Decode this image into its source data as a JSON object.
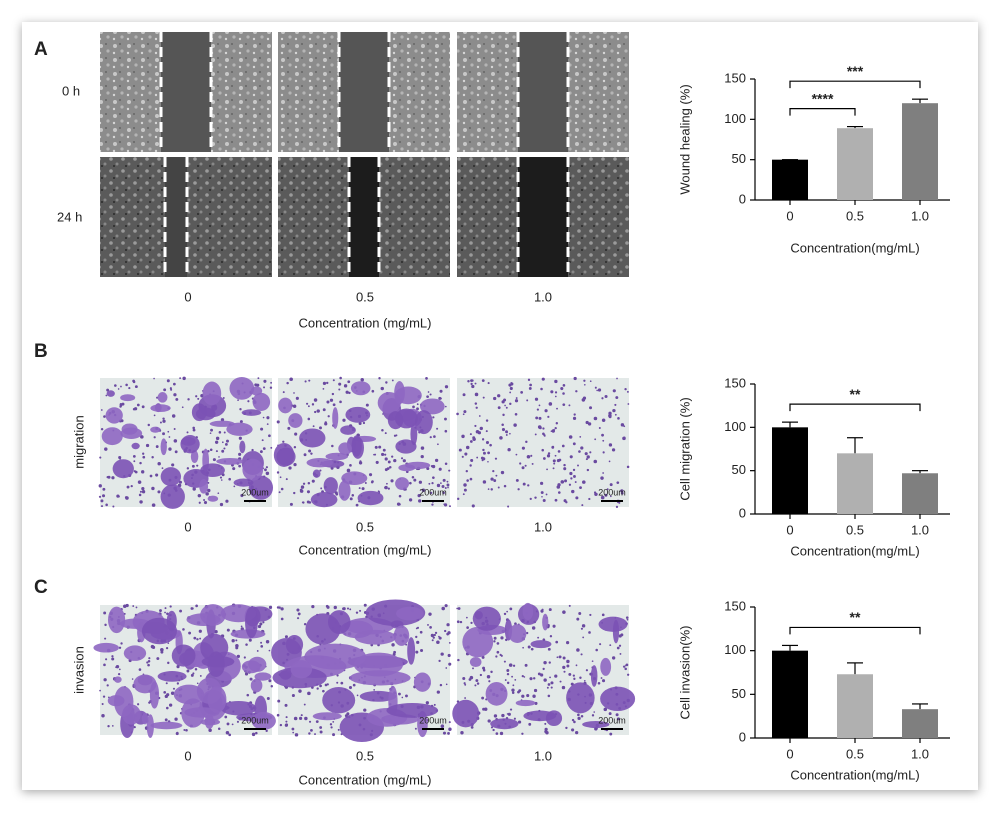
{
  "figure": {
    "panel_a": {
      "label": "A",
      "rows": [
        "0 h",
        "24 h"
      ],
      "columns": [
        "0",
        "0.5",
        "1.0"
      ],
      "xlabel": "Concentration (mg/mL)"
    },
    "panel_b": {
      "label": "B",
      "row": "migration",
      "columns": [
        "0",
        "0.5",
        "1.0"
      ],
      "xlabel": "Concentration (mg/mL)",
      "scale_bar": "200um"
    },
    "panel_c": {
      "label": "C",
      "row": "invasion",
      "columns": [
        "0",
        "0.5",
        "1.0"
      ],
      "xlabel": "Concentration (mg/mL)",
      "scale_bar": "200um"
    }
  },
  "chart_data": [
    {
      "type": "bar",
      "ylabel": "Wound healing (%)",
      "xlabel": "Concentration(mg/mL)",
      "categories": [
        "0",
        "0.5",
        "1.0"
      ],
      "values": [
        50,
        89,
        120
      ],
      "errors": [
        0,
        2,
        5
      ],
      "colors": [
        "#000000",
        "#b0b0b0",
        "#7f7f7f"
      ],
      "ylim": [
        0,
        150
      ],
      "yticks": [
        0,
        50,
        100,
        150
      ],
      "annotations": [
        {
          "text": "****",
          "from": 0,
          "to": 1
        },
        {
          "text": "***",
          "from": 0,
          "to": 2
        }
      ]
    },
    {
      "type": "bar",
      "ylabel": "Cell migration (%)",
      "xlabel": "Concentration(mg/mL)",
      "categories": [
        "0",
        "0.5",
        "1.0"
      ],
      "values": [
        100,
        70,
        47
      ],
      "errors": [
        6,
        18,
        3
      ],
      "colors": [
        "#000000",
        "#b0b0b0",
        "#7f7f7f"
      ],
      "ylim": [
        0,
        150
      ],
      "yticks": [
        0,
        50,
        100,
        150
      ],
      "annotations": [
        {
          "text": "**",
          "from": 0,
          "to": 2
        }
      ]
    },
    {
      "type": "bar",
      "ylabel": "Cell invasion(%)",
      "xlabel": "Concentration(mg/mL)",
      "categories": [
        "0",
        "0.5",
        "1.0"
      ],
      "values": [
        100,
        73,
        33
      ],
      "errors": [
        6,
        13,
        6
      ],
      "colors": [
        "#000000",
        "#b0b0b0",
        "#7f7f7f"
      ],
      "ylim": [
        0,
        150
      ],
      "yticks": [
        0,
        50,
        100,
        150
      ],
      "annotations": [
        {
          "text": "**",
          "from": 0,
          "to": 2
        }
      ]
    }
  ]
}
